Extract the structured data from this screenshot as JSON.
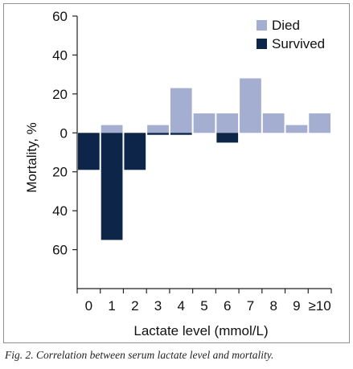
{
  "chart_data": {
    "type": "bar",
    "categories": [
      "0",
      "1",
      "2",
      "3",
      "4",
      "5",
      "6",
      "7",
      "8",
      "9",
      "≥10"
    ],
    "series": [
      {
        "name": "Died",
        "color": "#a3aed0",
        "values": [
          0,
          4,
          0,
          4,
          23,
          10,
          10,
          28,
          10,
          4,
          10
        ]
      },
      {
        "name": "Survived",
        "color": "#0c2548",
        "values": [
          19,
          55,
          19,
          1,
          1,
          0,
          5,
          0,
          0,
          0,
          0
        ]
      }
    ],
    "y_ticks": [
      {
        "value": 60,
        "label": "60"
      },
      {
        "value": 40,
        "label": "40"
      },
      {
        "value": 20,
        "label": "20"
      },
      {
        "value": 0,
        "label": "0"
      },
      {
        "value": -20,
        "label": "20"
      },
      {
        "value": -40,
        "label": "40"
      },
      {
        "value": -60,
        "label": "60"
      }
    ],
    "ylim": [
      -80,
      60
    ],
    "xlabel": "Lactate level (mmol/L)",
    "ylabel": "Mortality, %",
    "legend_position": "top-right",
    "grid": false
  },
  "caption": "Fig. 2. Correlation between serum lactate level and mortality."
}
